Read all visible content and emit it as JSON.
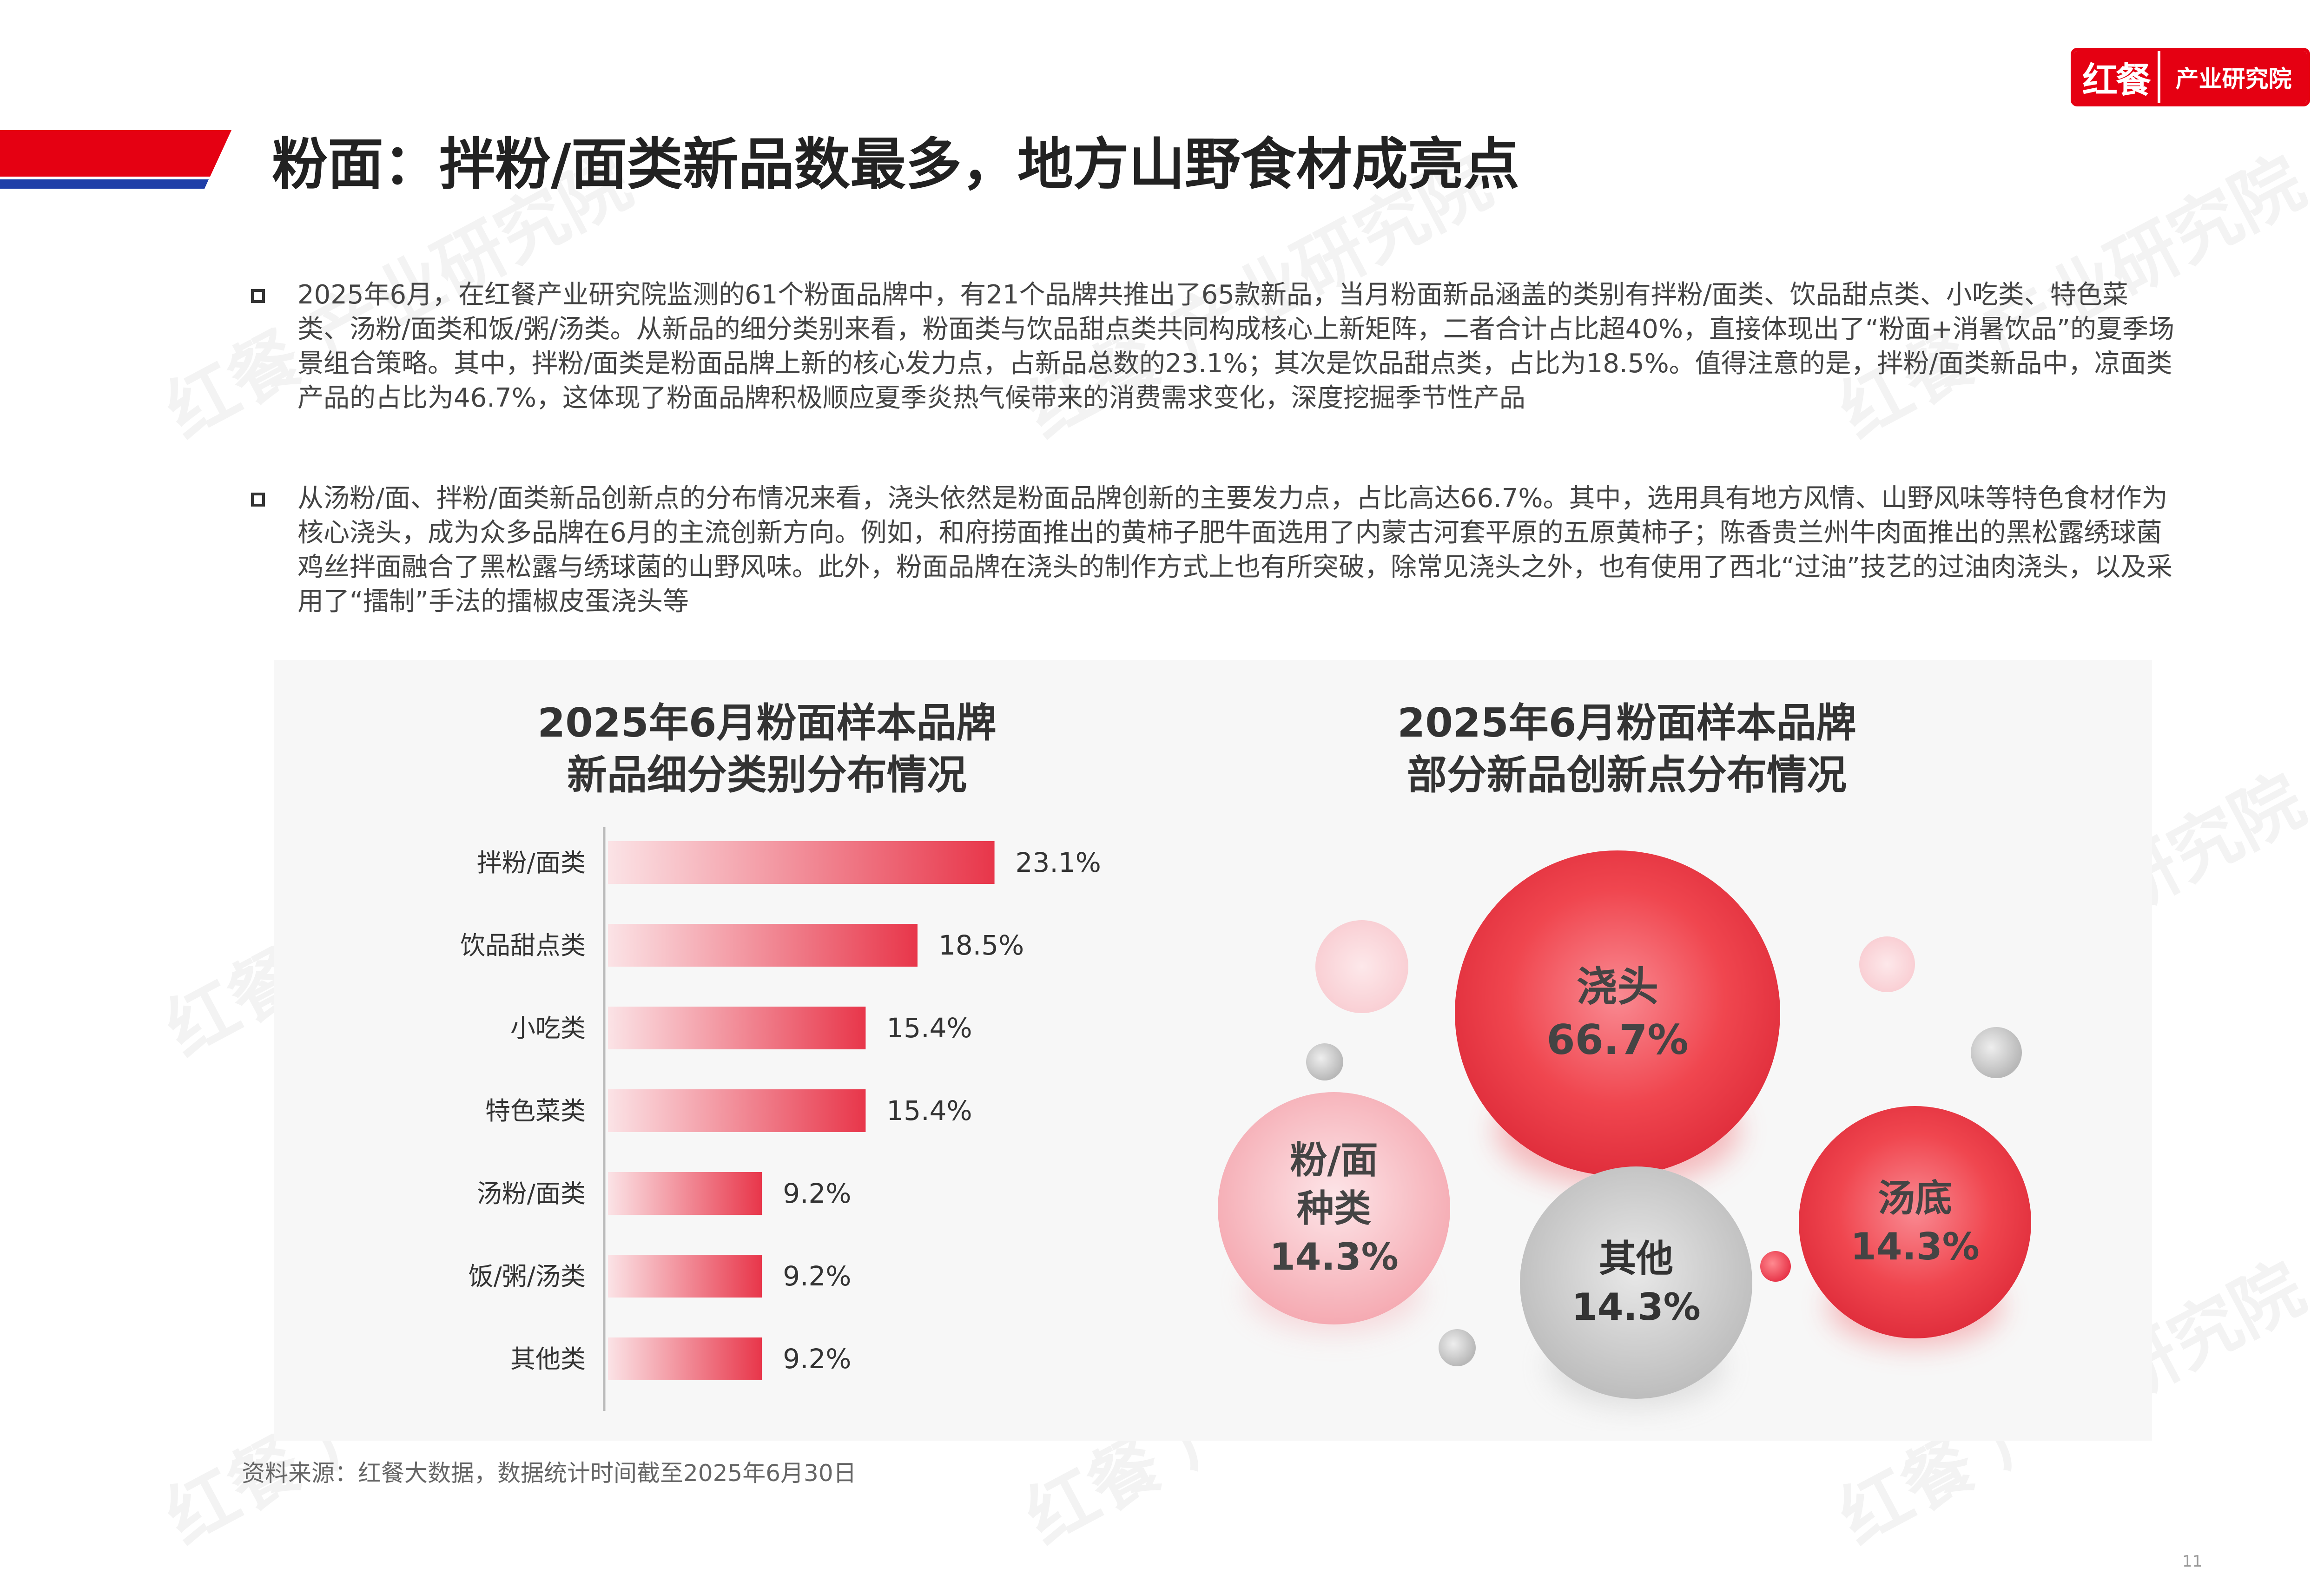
{
  "header": {
    "logo_mark": "红餐",
    "logo_text": "产业研究院",
    "title": "粉面：拌粉/面类新品数最多，地方山野食材成亮点",
    "brand_colors": {
      "red": "#e50012",
      "blue": "#1f3fa8"
    }
  },
  "paragraphs": [
    "2025年6月，在红餐产业研究院监测的61个粉面品牌中，有21个品牌共推出了65款新品，当月粉面新品涵盖的类别有拌粉/面类、饮品甜点类、小吃类、特色菜类、汤粉/面类和饭/粥/汤类。从新品的细分类别来看，粉面类与饮品甜点类共同构成核心上新矩阵，二者合计占比超40%，直接体现出了“粉面+消暑饮品”的夏季场景组合策略。其中，拌粉/面类是粉面品牌上新的核心发力点，占新品总数的23.1%；其次是饮品甜点类，占比为18.5%。值得注意的是，拌粉/面类新品中，凉面类产品的占比为46.7%，这体现了粉面品牌积极顺应夏季炎热气候带来的消费需求变化，深度挖掘季节性产品",
    "从汤粉/面、拌粉/面类新品创新点的分布情况来看，浇头依然是粉面品牌创新的主要发力点，占比高达66.7%。其中，选用具有地方风情、山野风味等特色食材作为核心浇头，成为众多品牌在6月的主流创新方向。例如，和府捞面推出的黄柿子肥牛面选用了内蒙古河套平原的五原黄柿子；陈香贵兰州牛肉面推出的黑松露绣球菌鸡丝拌面融合了黑松露与绣球菌的山野风味。此外，粉面品牌在浇头的制作方式上也有所突破，除常见浇头之外，也有使用了西北“过油”技艺的过油肉浇头，以及采用了“擂制”手法的擂椒皮蛋浇头等"
  ],
  "chart_left_title": [
    "2025年6月粉面样本品牌",
    "新品细分类别分布情况"
  ],
  "chart_right_title": [
    "2025年6月粉面样本品牌",
    "部分新品创新点分布情况"
  ],
  "chart_data": [
    {
      "type": "bar",
      "orientation": "horizontal",
      "categories": [
        "拌粉/面类",
        "饮品甜点类",
        "小吃类",
        "特色菜类",
        "汤粉/面类",
        "饭/粥/汤类",
        "其他类"
      ],
      "values": [
        23.1,
        18.5,
        15.4,
        15.4,
        9.2,
        9.2,
        9.2
      ],
      "value_labels": [
        "23.1%",
        "18.5%",
        "15.4%",
        "15.4%",
        "9.2%",
        "9.2%",
        "9.2%"
      ],
      "unit": "%",
      "xlim": [
        0,
        25
      ],
      "grid": false,
      "bar_color": "#e8364a"
    },
    {
      "type": "bubble",
      "categories": [
        "浇头",
        "粉/面种类",
        "汤底",
        "其他"
      ],
      "label_lines": [
        [
          "浇头",
          "66.7%"
        ],
        [
          "粉/面",
          "种类",
          "14.3%"
        ],
        [
          "汤底",
          "14.3%"
        ],
        [
          "其他",
          "14.3%"
        ]
      ],
      "values": [
        66.7,
        14.3,
        14.3,
        14.3
      ],
      "unit": "%",
      "colors": [
        "#f0464f",
        "#f7b8bf",
        "#f04e58",
        "#c8c8c8"
      ]
    }
  ],
  "source": "资料来源：红餐大数据，数据统计时间截至2025年6月30日",
  "page_number": "11",
  "watermark": "红餐 产业研究院"
}
